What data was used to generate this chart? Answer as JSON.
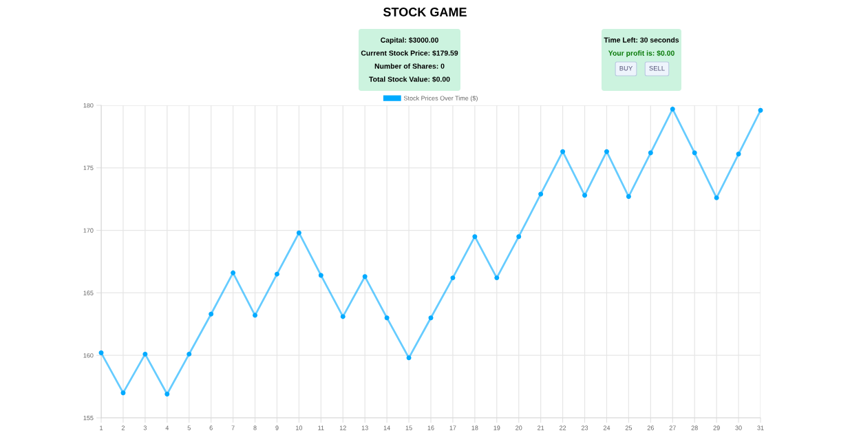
{
  "chart_data": [
    {
      "type": "other",
      "annotations": [
        "Capital: $3000.00",
        "Current Stock Price: $179.59",
        "Number of Shares: 0",
        "Total Stock Value: $0.00"
      ]
    },
    {
      "type": "other",
      "annotations": [
        "Time Left: 30 seconds",
        "Your profit is: $0.00",
        "BUY",
        "SELL"
      ]
    },
    {
      "type": "line",
      "title": "STOCK GAME",
      "categories": [
        "1",
        "2",
        "3",
        "4",
        "5",
        "6",
        "7",
        "8",
        "9",
        "10",
        "11",
        "12",
        "13",
        "14",
        "15",
        "16",
        "17",
        "18",
        "19",
        "20",
        "21",
        "22",
        "23",
        "24",
        "25",
        "26",
        "27",
        "28",
        "29",
        "30",
        "31"
      ],
      "series": [
        {
          "name": "Stock Prices Over Time ($)",
          "color": "#00aaff",
          "values": [
            160.2,
            157.0,
            160.1,
            156.9,
            160.1,
            163.3,
            166.6,
            163.2,
            166.5,
            169.8,
            166.4,
            163.1,
            166.3,
            163.0,
            159.8,
            163.0,
            166.2,
            169.5,
            166.2,
            169.5,
            172.9,
            176.3,
            172.8,
            176.3,
            172.7,
            176.2,
            179.7,
            176.2,
            172.6,
            176.1,
            179.6
          ]
        }
      ],
      "ylim": [
        155,
        180
      ],
      "yticks": [
        155,
        160,
        165,
        170,
        175,
        180
      ],
      "grid": true,
      "legend": "top",
      "marker": "circle"
    }
  ]
}
